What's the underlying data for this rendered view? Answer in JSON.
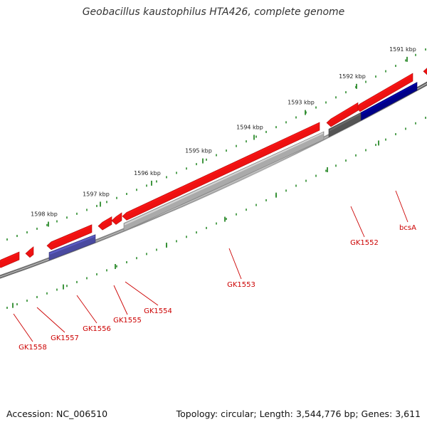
{
  "title": "Geobacillus kaustophilus HTA426, complete genome",
  "footer": {
    "accession": "Accession: NC_006510",
    "summary": "Topology: circular; Length: 3,544,776 bp; Genes: 3,611"
  },
  "colors": {
    "forward_gene": "#ee1111",
    "reverse_gene_gray": "#aaaaaa",
    "reverse_gene_blue": "#4a4aa0",
    "reverse_gene_navy": "#000088",
    "backbone": "#808080",
    "ticks": "#2a8a2a",
    "gene_label": "#cc0000",
    "kbp_label": "#222222"
  },
  "kbp_ticks": [
    {
      "label": "1591 kbp"
    },
    {
      "label": "1592 kbp"
    },
    {
      "label": "1593 kbp"
    },
    {
      "label": "1594 kbp"
    },
    {
      "label": "1595 kbp"
    },
    {
      "label": "1596 kbp"
    },
    {
      "label": "1597 kbp"
    },
    {
      "label": "1598 kbp"
    }
  ],
  "genes": [
    {
      "name": "bcsA",
      "strand": "reverse"
    },
    {
      "name": "GK1552",
      "strand": "reverse"
    },
    {
      "name": "GK1553",
      "strand": "reverse"
    },
    {
      "name": "GK1554",
      "strand": "forward"
    },
    {
      "name": "GK1555",
      "strand": "forward"
    },
    {
      "name": "GK1556",
      "strand": "reverse"
    },
    {
      "name": "GK1557",
      "strand": "forward"
    },
    {
      "name": "GK1558",
      "strand": "forward"
    }
  ]
}
